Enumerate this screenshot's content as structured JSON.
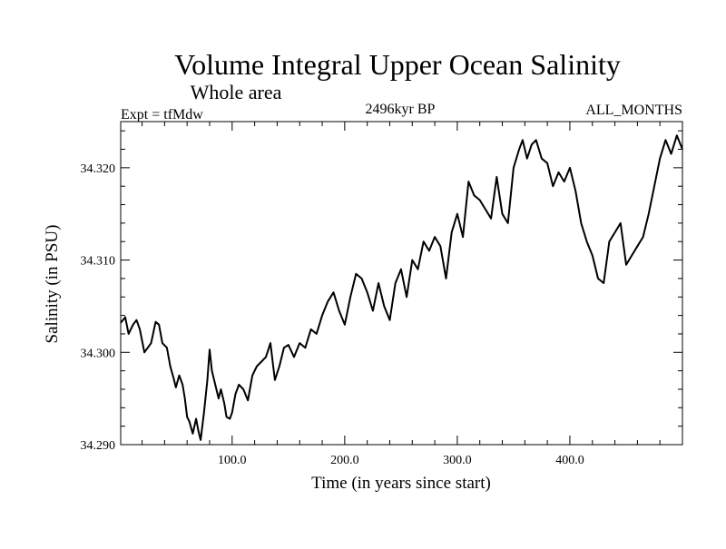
{
  "chart_data": {
    "type": "line",
    "title": "Volume Integral Upper Ocean Salinity",
    "subtitle": "Whole area",
    "header_left": "Expt = tfMdw",
    "header_center": "2496kyr BP",
    "header_right": "ALL_MONTHS",
    "xlabel": "Time (in years since start)",
    "ylabel": "Salinity (in PSU)",
    "xlim": [
      1,
      500
    ],
    "ylim": [
      34.29,
      34.325
    ],
    "xticks": [
      {
        "value": 100,
        "label": "100.0"
      },
      {
        "value": 200,
        "label": "200.0"
      },
      {
        "value": 300,
        "label": "300.0"
      },
      {
        "value": 400,
        "label": "400.0"
      }
    ],
    "yticks": [
      {
        "value": 34.29,
        "label": "34.290"
      },
      {
        "value": 34.3,
        "label": "34.300"
      },
      {
        "value": 34.31,
        "label": "34.310"
      },
      {
        "value": 34.32,
        "label": "34.320"
      }
    ],
    "series": [
      {
        "name": "Salinity",
        "color": "#000000",
        "x": [
          1,
          5,
          8,
          12,
          15,
          18,
          22,
          25,
          28,
          32,
          35,
          38,
          42,
          45,
          48,
          50,
          53,
          56,
          58,
          60,
          62,
          65,
          68,
          70,
          72,
          75,
          78,
          80,
          82,
          85,
          88,
          90,
          93,
          95,
          98,
          100,
          103,
          106,
          110,
          114,
          118,
          122,
          126,
          130,
          134,
          138,
          142,
          146,
          150,
          155,
          160,
          165,
          170,
          175,
          180,
          185,
          190,
          195,
          200,
          205,
          210,
          215,
          220,
          225,
          230,
          235,
          240,
          245,
          250,
          255,
          260,
          265,
          270,
          275,
          280,
          285,
          290,
          295,
          300,
          305,
          310,
          315,
          320,
          325,
          330,
          335,
          340,
          345,
          350,
          355,
          358,
          362,
          366,
          370,
          375,
          380,
          385,
          390,
          395,
          400,
          405,
          410,
          415,
          420,
          425,
          430,
          435,
          440,
          445,
          450,
          455,
          460,
          465,
          470,
          475,
          480,
          485,
          490,
          495,
          500
        ],
        "y": [
          34.3032,
          34.3038,
          34.302,
          34.303,
          34.3035,
          34.3025,
          34.3,
          34.3005,
          34.301,
          34.3033,
          34.303,
          34.301,
          34.3005,
          34.2985,
          34.2972,
          34.2962,
          34.2975,
          34.2965,
          34.295,
          34.293,
          34.2925,
          34.2912,
          34.2928,
          34.2915,
          34.2905,
          34.2935,
          34.297,
          34.3003,
          34.298,
          34.2965,
          34.295,
          34.296,
          34.2945,
          34.293,
          34.2928,
          34.2935,
          34.2955,
          34.2965,
          34.296,
          34.2948,
          34.2975,
          34.2985,
          34.299,
          34.2995,
          34.301,
          34.297,
          34.2985,
          34.3005,
          34.3008,
          34.2995,
          34.301,
          34.3005,
          34.3025,
          34.302,
          34.304,
          34.3055,
          34.3065,
          34.3045,
          34.303,
          34.306,
          34.3085,
          34.308,
          34.3065,
          34.3045,
          34.3075,
          34.305,
          34.3035,
          34.3075,
          34.309,
          34.306,
          34.31,
          34.309,
          34.312,
          34.311,
          34.3125,
          34.3115,
          34.308,
          34.313,
          34.315,
          34.3125,
          34.3185,
          34.317,
          34.3165,
          34.3155,
          34.3145,
          34.319,
          34.315,
          34.314,
          34.32,
          34.322,
          34.323,
          34.321,
          34.3225,
          34.323,
          34.321,
          34.3205,
          34.318,
          34.3195,
          34.3185,
          34.32,
          34.3175,
          34.314,
          34.312,
          34.3105,
          34.308,
          34.3075,
          34.312,
          34.313,
          34.314,
          34.3095,
          34.3105,
          34.3115,
          34.3125,
          34.315,
          34.318,
          34.321,
          34.323,
          34.3215,
          34.3235,
          34.322
        ]
      }
    ]
  }
}
